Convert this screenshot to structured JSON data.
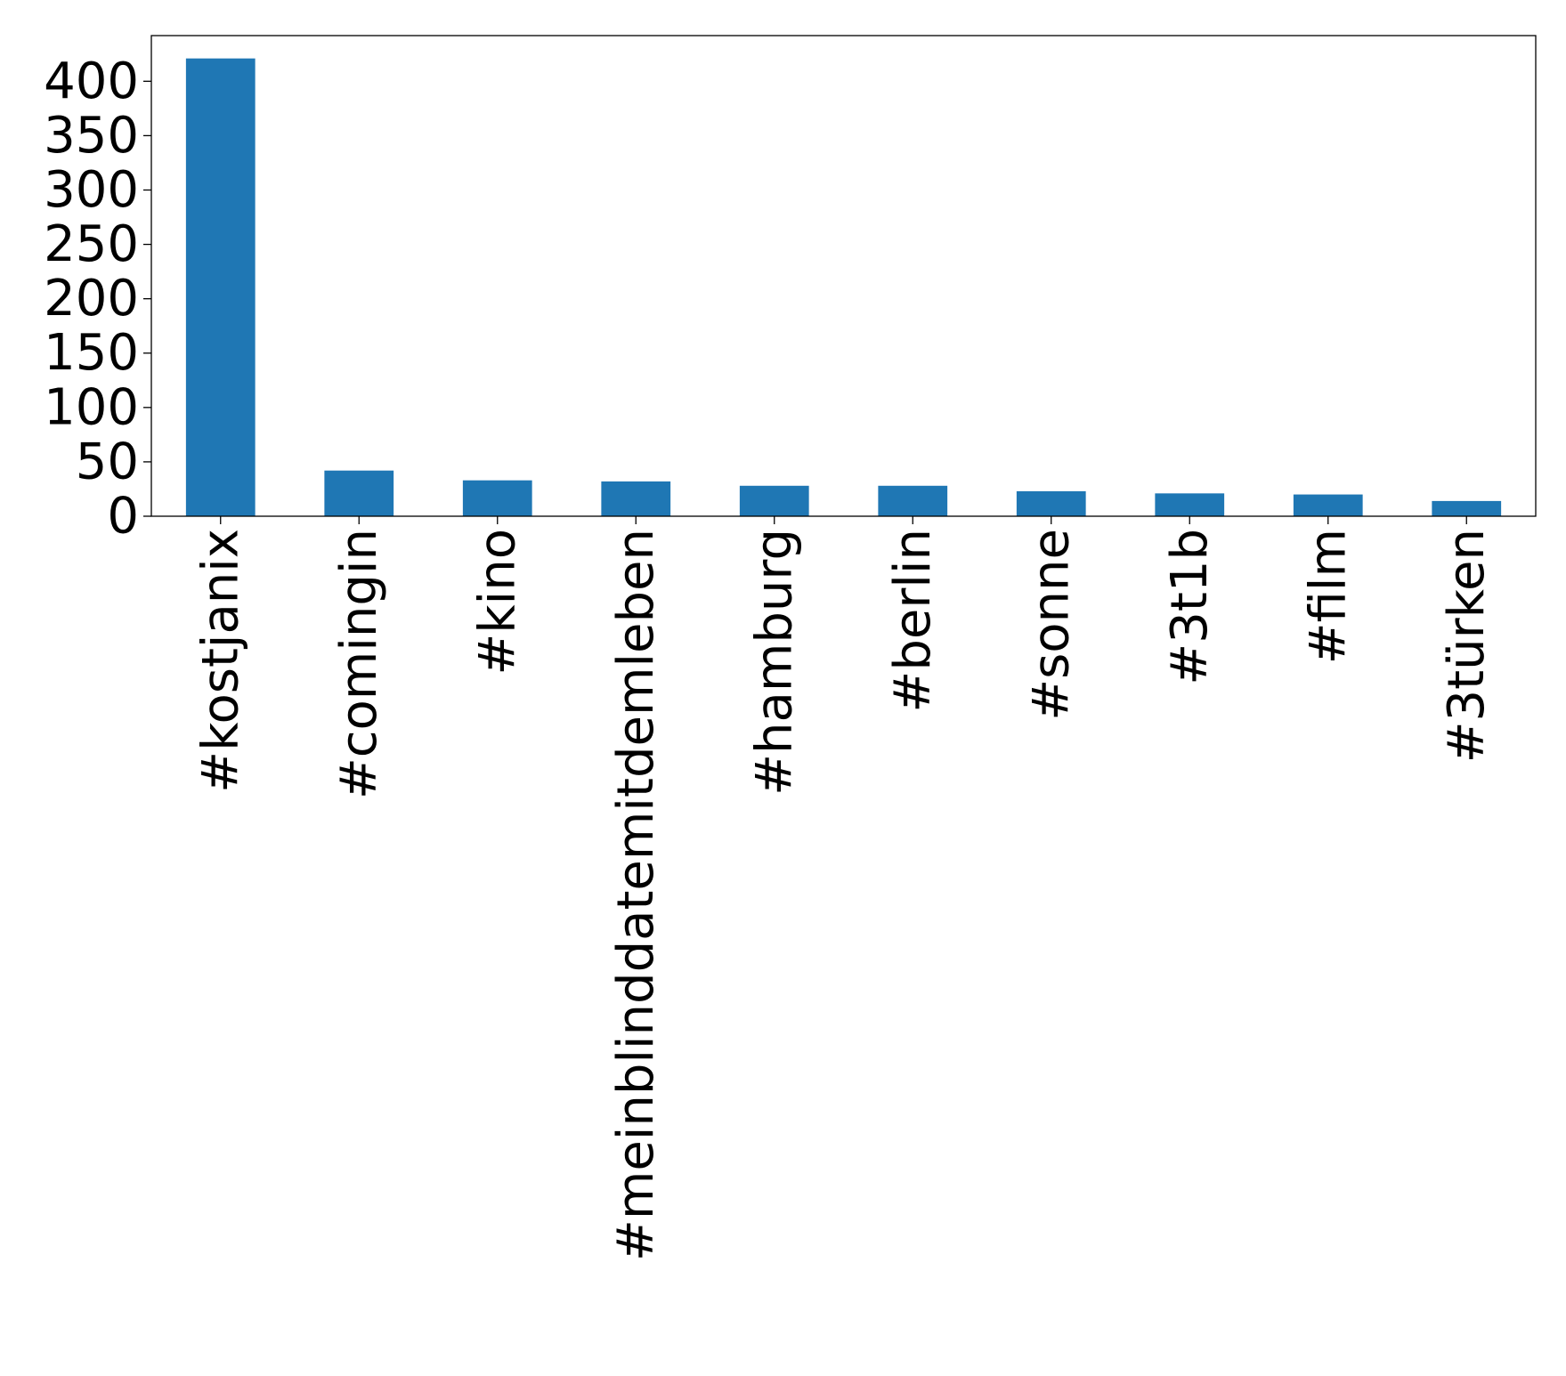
{
  "chart_data": {
    "type": "bar",
    "title": "",
    "xlabel": "",
    "ylabel": "",
    "categories": [
      "#kostjanix",
      "#comingin",
      "#kino",
      "#meinblinddatemitdemleben",
      "#hamburg",
      "#berlin",
      "#sonne",
      "#3t1b",
      "#film",
      "#3türken"
    ],
    "values": [
      421,
      42,
      33,
      32,
      28,
      28,
      23,
      21,
      20,
      14
    ],
    "ylim": [
      0,
      442
    ],
    "yticks": [
      0,
      50,
      100,
      150,
      200,
      250,
      300,
      350,
      400
    ],
    "ytick_labels": [
      "0",
      "50",
      "100",
      "150",
      "200",
      "250",
      "300",
      "350",
      "400"
    ],
    "grid": false,
    "legend": "none",
    "colors": {
      "bar": "#1f77b4",
      "axes": "#000000",
      "background": "#ffffff"
    }
  }
}
